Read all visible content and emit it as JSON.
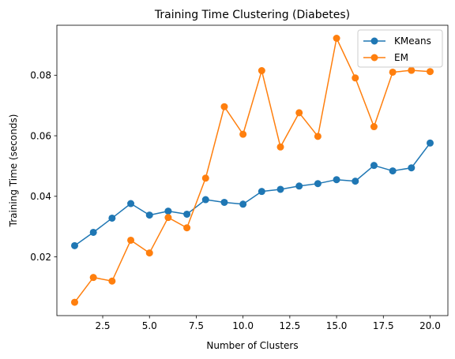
{
  "chart_data": {
    "type": "line",
    "title": "Training Time Clustering (Diabetes)",
    "xlabel": "Number of Clusters",
    "ylabel": "Training Time (seconds)",
    "xlim": [
      0.05,
      20.95
    ],
    "ylim": [
      0.0006,
      0.0965
    ],
    "x_ticks": [
      2.5,
      5.0,
      7.5,
      10.0,
      12.5,
      15.0,
      17.5,
      20.0
    ],
    "x_tick_labels": [
      "2.5",
      "5.0",
      "7.5",
      "10.0",
      "12.5",
      "15.0",
      "17.5",
      "20.0"
    ],
    "y_ticks": [
      0.02,
      0.04,
      0.06,
      0.08
    ],
    "y_tick_labels": [
      "0.02",
      "0.04",
      "0.06",
      "0.08"
    ],
    "grid": false,
    "legend_position": "top-right",
    "x": [
      1,
      2,
      3,
      4,
      5,
      6,
      7,
      8,
      9,
      10,
      11,
      12,
      13,
      14,
      15,
      16,
      17,
      18,
      19,
      20
    ],
    "series": [
      {
        "name": "KMeans",
        "color": "#1f77b4",
        "values": [
          0.0237,
          0.0281,
          0.0328,
          0.0376,
          0.0338,
          0.0351,
          0.0341,
          0.0389,
          0.038,
          0.0374,
          0.0416,
          0.0423,
          0.0434,
          0.0442,
          0.0455,
          0.045,
          0.0502,
          0.0484,
          0.0494,
          0.0576
        ]
      },
      {
        "name": "EM",
        "color": "#ff7f0e",
        "values": [
          0.005,
          0.0132,
          0.012,
          0.0255,
          0.0213,
          0.033,
          0.0296,
          0.046,
          0.0696,
          0.0605,
          0.0815,
          0.0563,
          0.0676,
          0.0598,
          0.0922,
          0.0791,
          0.063,
          0.081,
          0.0816,
          0.0812
        ]
      }
    ]
  }
}
